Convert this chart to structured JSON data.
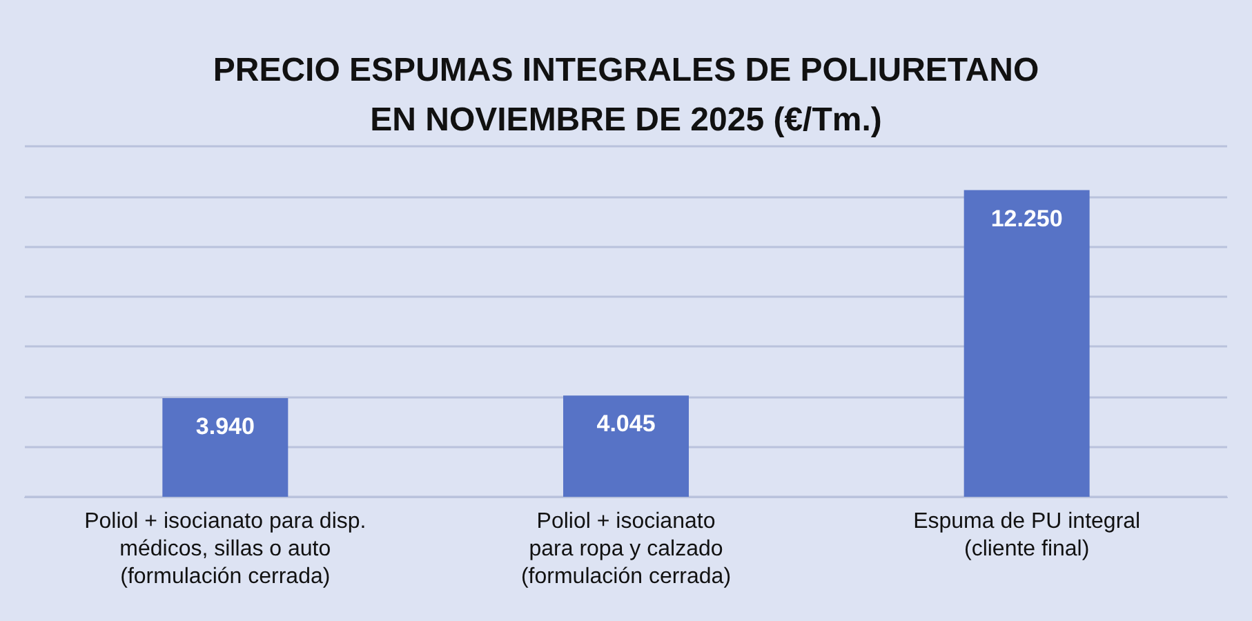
{
  "chart_data": {
    "type": "bar",
    "title": "PRECIO ESPUMAS INTEGRALES DE POLIURETANO\nEN NOVIEMBRE DE 2025 (€/Tm.)",
    "categories": [
      "Poliol + isocianato para disp.\nmédicos, sillas o auto\n(formulación cerrada)",
      "Poliol + isocianato\npara ropa y calzado\n(formulación cerrada)",
      "Espuma de PU integral\n(cliente final)"
    ],
    "values": [
      3940,
      4045,
      12250
    ],
    "value_labels": [
      "3.940",
      "4.045",
      "12.250"
    ],
    "color": "#5773c6",
    "ylim": [
      0,
      14000
    ],
    "yticks": [
      {
        "value": 0,
        "label": null
      },
      {
        "value": 2000,
        "label": null
      },
      {
        "value": 4000,
        "label": null
      },
      {
        "value": 6000,
        "label": null
      },
      {
        "value": 8000,
        "label": null
      },
      {
        "value": 10000,
        "label": null
      },
      {
        "value": 12000,
        "label": null
      },
      {
        "value": 14000,
        "label": null
      }
    ],
    "grid": "y",
    "tick_labels": "x"
  }
}
